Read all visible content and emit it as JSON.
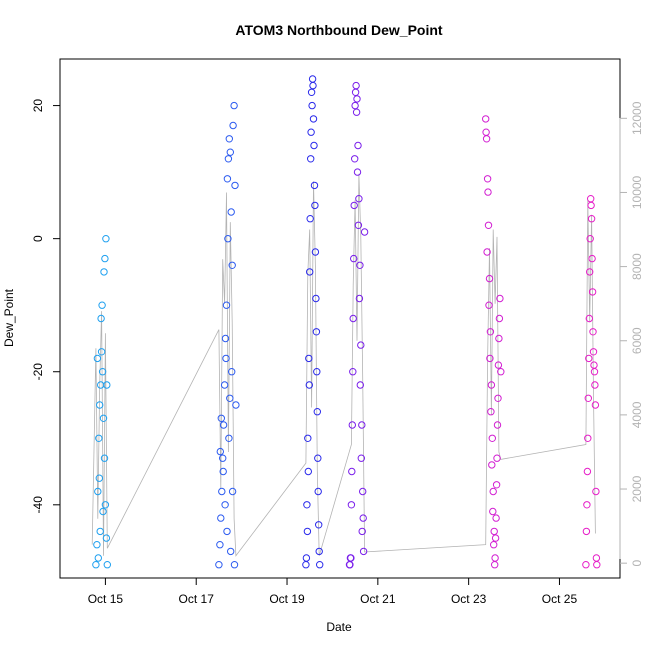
{
  "chart_data": {
    "type": "scatter",
    "title": "ATOM3 Northbound Dew_Point",
    "xlabel": "Date",
    "ylabel": "Dew_Point",
    "x_ticks": [
      "Oct 15",
      "Oct 17",
      "Oct 19",
      "Oct 21",
      "Oct 23",
      "Oct 25"
    ],
    "y_ticks": [
      "20",
      "0",
      "-20",
      "-40"
    ],
    "y2_ticks": [
      "0",
      "2000",
      "4000",
      "6000",
      "8000",
      "10000",
      "12000"
    ],
    "ylim": [
      -51,
      27
    ],
    "y2lim": [
      -400,
      13600
    ],
    "xlim": [
      "Oct 14 00:00",
      "Oct 26 08:00"
    ],
    "grid": false,
    "secondary_series": {
      "color": "#b3b3b3",
      "axis": "right",
      "points": [
        [
          "Oct 14 17:00",
          500
        ],
        [
          "Oct 14 18:00",
          3200
        ],
        [
          "Oct 14 19:00",
          5800
        ],
        [
          "Oct 14 20:00",
          1200
        ],
        [
          "Oct 14 21:00",
          4800
        ],
        [
          "Oct 14 22:00",
          6800
        ],
        [
          "Oct 14 23:00",
          200
        ],
        [
          "Oct 15 00:00",
          6200
        ],
        [
          "Oct 15 01:00",
          400
        ],
        [
          "Oct 17 12:00",
          6300
        ],
        [
          "Oct 17 13:00",
          2000
        ],
        [
          "Oct 17 14:00",
          8200
        ],
        [
          "Oct 17 15:00",
          7000
        ],
        [
          "Oct 17 16:00",
          10000
        ],
        [
          "Oct 17 17:00",
          3000
        ],
        [
          "Oct 17 18:00",
          9200
        ],
        [
          "Oct 17 19:00",
          6500
        ],
        [
          "Oct 17 20:00",
          1200
        ],
        [
          "Oct 17 21:00",
          200
        ],
        [
          "Oct 19 10:00",
          2700
        ],
        [
          "Oct 19 11:00",
          7800
        ],
        [
          "Oct 19 12:00",
          9000
        ],
        [
          "Oct 19 13:00",
          4200
        ],
        [
          "Oct 19 14:00",
          10300
        ],
        [
          "Oct 19 15:00",
          8000
        ],
        [
          "Oct 19 16:00",
          2500
        ],
        [
          "Oct 19 17:00",
          200
        ],
        [
          "Oct 20 10:00",
          3200
        ],
        [
          "Oct 20 11:00",
          7500
        ],
        [
          "Oct 20 12:00",
          9800
        ],
        [
          "Oct 20 13:00",
          6000
        ],
        [
          "Oct 20 14:00",
          10500
        ],
        [
          "Oct 20 15:00",
          8800
        ],
        [
          "Oct 20 16:00",
          5000
        ],
        [
          "Oct 20 17:00",
          300
        ],
        [
          "Oct 23 09:00",
          500
        ],
        [
          "Oct 23 10:00",
          5500
        ],
        [
          "Oct 23 11:00",
          8500
        ],
        [
          "Oct 23 12:00",
          4000
        ],
        [
          "Oct 23 13:00",
          9000
        ],
        [
          "Oct 23 14:00",
          7000
        ],
        [
          "Oct 23 15:00",
          8800
        ],
        [
          "Oct 23 16:00",
          3000
        ],
        [
          "Oct 23 17:00",
          2800
        ],
        [
          "Oct 25 14:00",
          3200
        ],
        [
          "Oct 25 15:00",
          9800
        ],
        [
          "Oct 25 16:00",
          6500
        ],
        [
          "Oct 25 17:00",
          9400
        ],
        [
          "Oct 25 18:00",
          4500
        ],
        [
          "Oct 25 19:00",
          800
        ]
      ]
    },
    "series": [
      {
        "color": "#1EA0F0",
        "points": [
          [
            "Oct 14 19:00",
            -49
          ],
          [
            "Oct 14 19:30",
            -46
          ],
          [
            "Oct 14 20:00",
            -38
          ],
          [
            "Oct 14 20:30",
            -30
          ],
          [
            "Oct 14 21:00",
            -25
          ],
          [
            "Oct 14 21:30",
            -22
          ],
          [
            "Oct 14 22:00",
            -17
          ],
          [
            "Oct 14 22:30",
            -20
          ],
          [
            "Oct 14 23:00",
            -27
          ],
          [
            "Oct 14 23:30",
            -33
          ],
          [
            "Oct 15 00:00",
            -40
          ],
          [
            "Oct 15 00:30",
            -45
          ],
          [
            "Oct 15 01:00",
            -49
          ],
          [
            "Oct 14 20:15",
            -48
          ],
          [
            "Oct 14 21:45",
            -12
          ],
          [
            "Oct 14 22:15",
            -10
          ],
          [
            "Oct 14 23:15",
            -5
          ],
          [
            "Oct 14 23:45",
            -3
          ],
          [
            "Oct 15 00:15",
            0
          ],
          [
            "Oct 15 00:45",
            -22
          ],
          [
            "Oct 14 19:45",
            -18
          ],
          [
            "Oct 14 20:45",
            -36
          ],
          [
            "Oct 14 21:15",
            -44
          ],
          [
            "Oct 14 22:45",
            -41
          ]
        ]
      },
      {
        "color": "#2C5BF0",
        "points": [
          [
            "Oct 17 12:00",
            -49
          ],
          [
            "Oct 17 12:30",
            -46
          ],
          [
            "Oct 17 13:00",
            -42
          ],
          [
            "Oct 17 13:30",
            -38
          ],
          [
            "Oct 17 14:00",
            -33
          ],
          [
            "Oct 17 14:30",
            -28
          ],
          [
            "Oct 17 15:00",
            -22
          ],
          [
            "Oct 17 15:30",
            -15
          ],
          [
            "Oct 17 16:00",
            -10
          ],
          [
            "Oct 17 16:30",
            9
          ],
          [
            "Oct 17 17:00",
            12
          ],
          [
            "Oct 17 17:30",
            15
          ],
          [
            "Oct 17 18:00",
            13
          ],
          [
            "Oct 17 18:30",
            4
          ],
          [
            "Oct 17 19:00",
            -4
          ],
          [
            "Oct 17 19:30",
            17
          ],
          [
            "Oct 17 20:00",
            20
          ],
          [
            "Oct 17 20:30",
            8
          ],
          [
            "Oct 17 21:00",
            -25
          ],
          [
            "Oct 17 13:15",
            -27
          ],
          [
            "Oct 17 14:15",
            -35
          ],
          [
            "Oct 17 15:15",
            -40
          ],
          [
            "Oct 17 16:15",
            -44
          ],
          [
            "Oct 17 17:15",
            -30
          ],
          [
            "Oct 17 18:15",
            -47
          ],
          [
            "Oct 17 19:15",
            -38
          ],
          [
            "Oct 17 20:15",
            -49
          ],
          [
            "Oct 17 12:45",
            -32
          ],
          [
            "Oct 17 15:45",
            -18
          ],
          [
            "Oct 17 16:45",
            0
          ],
          [
            "Oct 17 17:45",
            -24
          ],
          [
            "Oct 17 18:45",
            -20
          ]
        ]
      },
      {
        "color": "#2A2AEB",
        "points": [
          [
            "Oct 19 10:00",
            -49
          ],
          [
            "Oct 19 10:30",
            -40
          ],
          [
            "Oct 19 11:00",
            -30
          ],
          [
            "Oct 19 11:30",
            -18
          ],
          [
            "Oct 19 12:00",
            -5
          ],
          [
            "Oct 19 12:30",
            12
          ],
          [
            "Oct 19 13:00",
            22
          ],
          [
            "Oct 19 13:30",
            24
          ],
          [
            "Oct 19 14:00",
            18
          ],
          [
            "Oct 19 14:30",
            8
          ],
          [
            "Oct 19 15:00",
            -2
          ],
          [
            "Oct 19 15:30",
            -14
          ],
          [
            "Oct 19 16:00",
            -26
          ],
          [
            "Oct 19 16:30",
            -38
          ],
          [
            "Oct 19 17:00",
            -47
          ],
          [
            "Oct 19 10:45",
            -44
          ],
          [
            "Oct 19 11:45",
            -22
          ],
          [
            "Oct 19 12:15",
            3
          ],
          [
            "Oct 19 12:45",
            16
          ],
          [
            "Oct 19 13:15",
            20
          ],
          [
            "Oct 19 13:45",
            23
          ],
          [
            "Oct 19 14:15",
            14
          ],
          [
            "Oct 19 14:45",
            5
          ],
          [
            "Oct 19 15:15",
            -9
          ],
          [
            "Oct 19 15:45",
            -20
          ],
          [
            "Oct 19 16:15",
            -33
          ],
          [
            "Oct 19 16:45",
            -43
          ],
          [
            "Oct 19 11:15",
            -35
          ],
          [
            "Oct 19 10:15",
            -48
          ],
          [
            "Oct 19 17:15",
            -49
          ]
        ]
      },
      {
        "color": "#7A1EEB",
        "points": [
          [
            "Oct 20 09:00",
            -49
          ],
          [
            "Oct 20 09:30",
            -48
          ],
          [
            "Oct 20 10:00",
            -40
          ],
          [
            "Oct 20 10:30",
            -28
          ],
          [
            "Oct 20 11:00",
            -12
          ],
          [
            "Oct 20 11:30",
            5
          ],
          [
            "Oct 20 12:00",
            20
          ],
          [
            "Oct 20 12:30",
            23
          ],
          [
            "Oct 20 13:00",
            21
          ],
          [
            "Oct 20 13:30",
            14
          ],
          [
            "Oct 20 14:00",
            6
          ],
          [
            "Oct 20 14:30",
            -4
          ],
          [
            "Oct 20 15:00",
            -16
          ],
          [
            "Oct 20 15:30",
            -28
          ],
          [
            "Oct 20 16:00",
            -38
          ],
          [
            "Oct 20 16:30",
            -47
          ],
          [
            "Oct 20 09:15",
            -49
          ],
          [
            "Oct 20 09:45",
            -48
          ],
          [
            "Oct 20 10:15",
            -35
          ],
          [
            "Oct 20 10:45",
            -20
          ],
          [
            "Oct 20 11:15",
            -3
          ],
          [
            "Oct 20 11:45",
            12
          ],
          [
            "Oct 20 12:15",
            22
          ],
          [
            "Oct 20 12:45",
            19
          ],
          [
            "Oct 20 13:15",
            10
          ],
          [
            "Oct 20 13:45",
            2
          ],
          [
            "Oct 20 14:15",
            -9
          ],
          [
            "Oct 20 14:45",
            -22
          ],
          [
            "Oct 20 15:15",
            -33
          ],
          [
            "Oct 20 15:45",
            -44
          ],
          [
            "Oct 20 16:15",
            -42
          ],
          [
            "Oct 20 17:00",
            1
          ]
        ]
      },
      {
        "color": "#D21ED2",
        "points": [
          [
            "Oct 23 09:00",
            18
          ],
          [
            "Oct 23 09:30",
            15
          ],
          [
            "Oct 23 10:00",
            9
          ],
          [
            "Oct 23 10:30",
            2
          ],
          [
            "Oct 23 11:00",
            -6
          ],
          [
            "Oct 23 11:30",
            -14
          ],
          [
            "Oct 23 12:00",
            -22
          ],
          [
            "Oct 23 12:30",
            -30
          ],
          [
            "Oct 23 13:00",
            -38
          ],
          [
            "Oct 23 13:30",
            -44
          ],
          [
            "Oct 23 14:00",
            -48
          ],
          [
            "Oct 23 14:30",
            -42
          ],
          [
            "Oct 23 15:00",
            -33
          ],
          [
            "Oct 23 15:30",
            -24
          ],
          [
            "Oct 23 16:00",
            -15
          ],
          [
            "Oct 23 16:30",
            -9
          ],
          [
            "Oct 23 17:00",
            -20
          ],
          [
            "Oct 23 09:15",
            16
          ],
          [
            "Oct 23 09:45",
            -2
          ],
          [
            "Oct 23 10:15",
            7
          ],
          [
            "Oct 23 10:45",
            -10
          ],
          [
            "Oct 23 11:15",
            -18
          ],
          [
            "Oct 23 11:45",
            -26
          ],
          [
            "Oct 23 12:15",
            -34
          ],
          [
            "Oct 23 12:45",
            -41
          ],
          [
            "Oct 23 13:15",
            -46
          ],
          [
            "Oct 23 13:45",
            -49
          ],
          [
            "Oct 23 14:15",
            -45
          ],
          [
            "Oct 23 14:45",
            -37
          ],
          [
            "Oct 23 15:15",
            -28
          ],
          [
            "Oct 23 15:45",
            -19
          ],
          [
            "Oct 23 16:15",
            -12
          ]
        ]
      },
      {
        "color": "#E61EC8",
        "points": [
          [
            "Oct 25 14:00",
            -49
          ],
          [
            "Oct 25 14:30",
            -40
          ],
          [
            "Oct 25 15:00",
            -30
          ],
          [
            "Oct 25 15:30",
            -18
          ],
          [
            "Oct 25 16:00",
            -5
          ],
          [
            "Oct 25 16:30",
            6
          ],
          [
            "Oct 25 17:00",
            3
          ],
          [
            "Oct 25 17:30",
            -8
          ],
          [
            "Oct 25 18:00",
            -17
          ],
          [
            "Oct 25 18:30",
            -20
          ],
          [
            "Oct 25 19:00",
            -25
          ],
          [
            "Oct 25 19:30",
            -48
          ],
          [
            "Oct 25 14:15",
            -44
          ],
          [
            "Oct 25 14:45",
            -35
          ],
          [
            "Oct 25 15:15",
            -24
          ],
          [
            "Oct 25 15:45",
            -12
          ],
          [
            "Oct 25 16:15",
            0
          ],
          [
            "Oct 25 16:45",
            5
          ],
          [
            "Oct 25 17:15",
            -3
          ],
          [
            "Oct 25 17:45",
            -14
          ],
          [
            "Oct 25 18:15",
            -19
          ],
          [
            "Oct 25 18:45",
            -22
          ],
          [
            "Oct 25 19:15",
            -38
          ],
          [
            "Oct 25 19:45",
            -49
          ]
        ]
      }
    ]
  }
}
